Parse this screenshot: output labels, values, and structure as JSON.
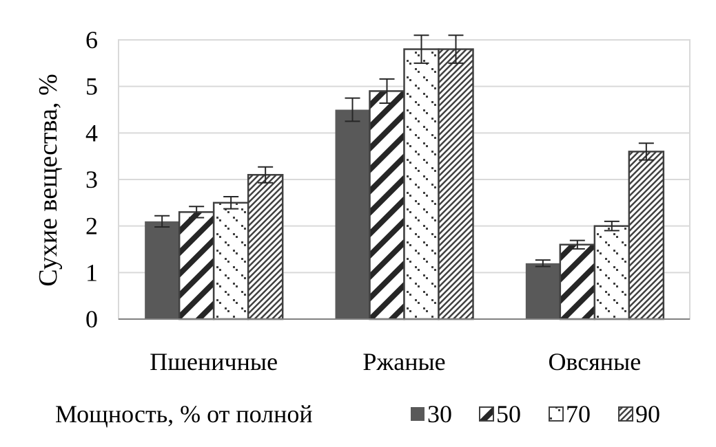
{
  "chart_data": {
    "type": "bar",
    "categories": [
      "Пшеничные",
      "Ржаные",
      "Овсяные"
    ],
    "series": [
      {
        "name": "30",
        "values": [
          2.1,
          4.5,
          1.2
        ],
        "errors": [
          0.12,
          0.25,
          0.07
        ]
      },
      {
        "name": "50",
        "values": [
          2.3,
          4.9,
          1.6
        ],
        "errors": [
          0.12,
          0.26,
          0.09
        ]
      },
      {
        "name": "70",
        "values": [
          2.5,
          5.8,
          2.0
        ],
        "errors": [
          0.13,
          0.3,
          0.1
        ]
      },
      {
        "name": "90",
        "values": [
          3.1,
          5.8,
          3.6
        ],
        "errors": [
          0.17,
          0.3,
          0.18
        ]
      }
    ],
    "xlabel": "",
    "ylabel": "Сухие вещества, %",
    "ylim": [
      0,
      6
    ],
    "yticks": [
      "0",
      "1",
      "2",
      "3",
      "4",
      "5",
      "6"
    ],
    "grid": true,
    "legend": {
      "title": "Мощность, % от полной",
      "position": "bottom"
    },
    "patterns": [
      "solid",
      "diagonal-thick",
      "dots",
      "diagonal-fine"
    ],
    "colors": {
      "solid": "#595959",
      "pattern": "#404040",
      "grid": "#d9d9d9",
      "axis": "#808080",
      "border": "#404040"
    }
  }
}
